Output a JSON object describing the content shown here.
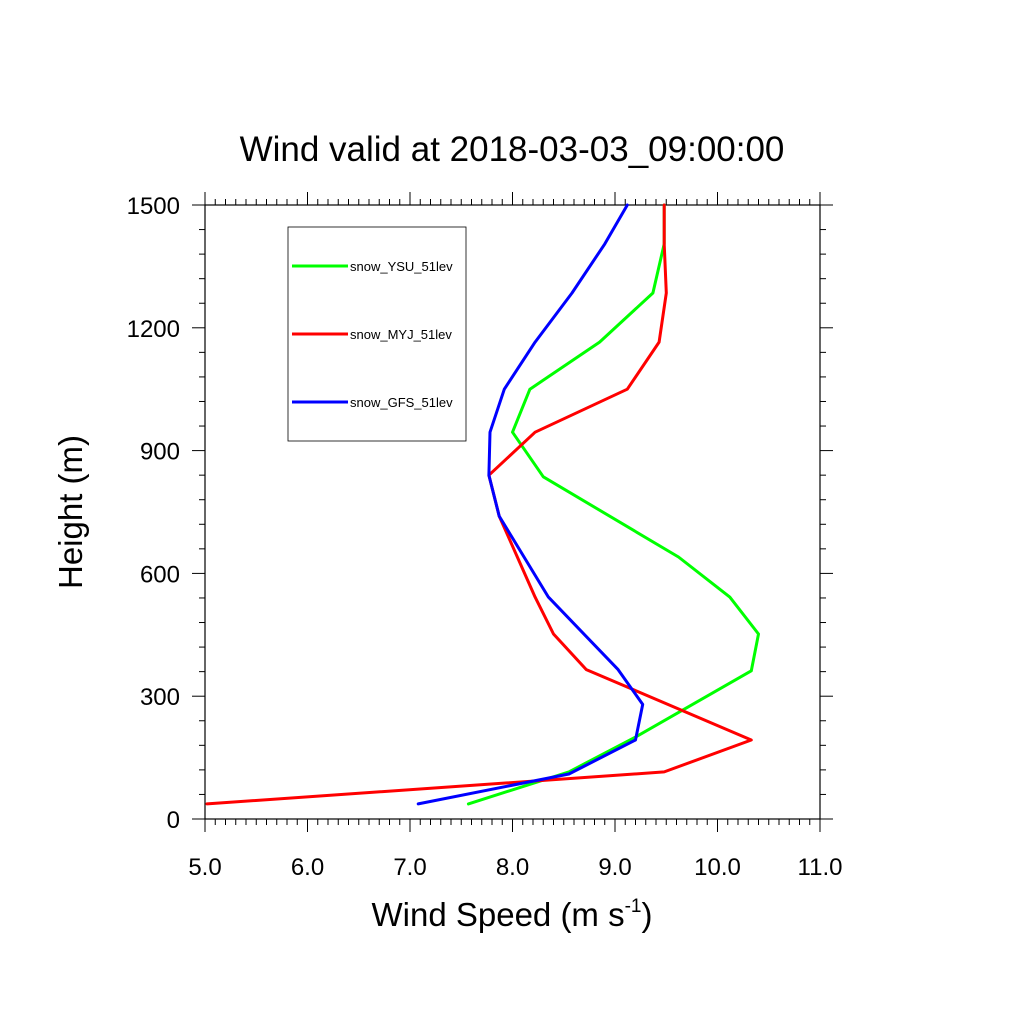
{
  "chart_data": {
    "type": "line",
    "title": "Wind valid at 2018-03-03_09:00:00",
    "xlabel": {
      "main": "Wind Speed (m s",
      "superscript": "-1",
      "close": ")"
    },
    "ylabel": "Height (m)",
    "xlim": [
      5.0,
      11.0
    ],
    "ylim": [
      0,
      1500
    ],
    "x_ticks": [
      "5.0",
      "6.0",
      "7.0",
      "8.0",
      "9.0",
      "10.0",
      "11.0"
    ],
    "y_ticks": [
      "0",
      "300",
      "600",
      "900",
      "1200",
      "1500"
    ],
    "grid": false,
    "legend_position": "top-left",
    "series": [
      {
        "name": "snow_YSU_51lev",
        "color": "#00ff00",
        "points": [
          [
            7.57,
            37
          ],
          [
            8.55,
            115
          ],
          [
            9.2,
            200
          ],
          [
            10.33,
            362
          ],
          [
            10.4,
            452
          ],
          [
            10.12,
            542
          ],
          [
            9.62,
            640
          ],
          [
            8.3,
            836
          ],
          [
            8.0,
            945
          ],
          [
            8.17,
            1050
          ],
          [
            8.85,
            1165
          ],
          [
            9.37,
            1285
          ],
          [
            9.48,
            1405
          ],
          [
            9.48,
            1500
          ]
        ]
      },
      {
        "name": "snow_MYJ_51lev",
        "color": "#ff0000",
        "points": [
          [
            5.02,
            37
          ],
          [
            9.48,
            115
          ],
          [
            10.33,
            193
          ],
          [
            8.72,
            365
          ],
          [
            8.4,
            452
          ],
          [
            8.22,
            542
          ],
          [
            7.87,
            740
          ],
          [
            7.77,
            840
          ],
          [
            8.22,
            945
          ],
          [
            9.12,
            1050
          ],
          [
            9.43,
            1165
          ],
          [
            9.5,
            1285
          ],
          [
            9.48,
            1405
          ],
          [
            9.48,
            1500
          ]
        ]
      },
      {
        "name": "snow_GFS_51lev",
        "color": "#0000ff",
        "points": [
          [
            7.08,
            37
          ],
          [
            8.55,
            110
          ],
          [
            9.2,
            193
          ],
          [
            9.27,
            280
          ],
          [
            9.03,
            365
          ],
          [
            8.35,
            542
          ],
          [
            7.87,
            740
          ],
          [
            7.77,
            840
          ],
          [
            7.78,
            945
          ],
          [
            7.92,
            1050
          ],
          [
            8.22,
            1165
          ],
          [
            8.58,
            1285
          ],
          [
            8.9,
            1405
          ],
          [
            9.12,
            1500
          ]
        ]
      }
    ]
  }
}
